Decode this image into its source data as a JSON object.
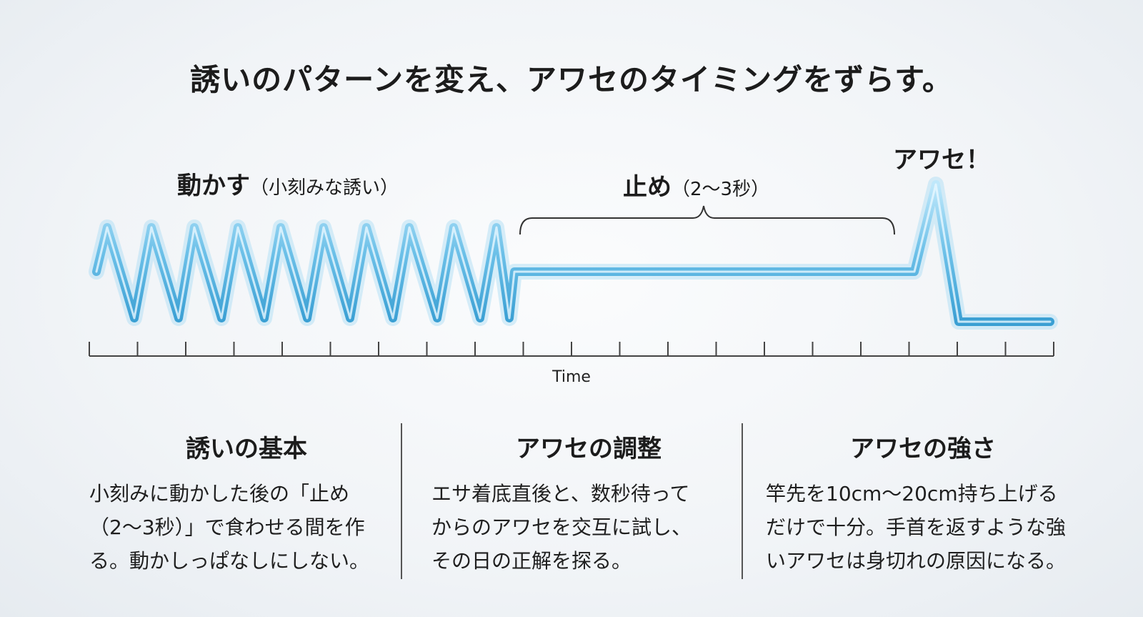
{
  "title": "誘いのパターンを変え、アワセのタイミングをずらす。",
  "labels": {
    "move_main": "動かす",
    "move_sub": "（小刻みな誘い）",
    "stop_main": "止め",
    "stop_sub": "（2〜3秒）",
    "strike": "アワセ！"
  },
  "axis": {
    "label": "Time",
    "tick_count": 21
  },
  "colors": {
    "line": "#6cc0e8",
    "line_dark": "#3a9fd3",
    "axis": "#444444"
  },
  "columns": [
    {
      "heading": "誘いの基本",
      "lines": [
        "小刻みに動かした後の「止め",
        "（2〜3秒）」で食わせる間を作",
        "る。動かしっぱなしにしない。"
      ]
    },
    {
      "heading": "アワセの調整",
      "lines": [
        "エサ着底直後と、数秒待って",
        "からのアワセを交互に試し、",
        "その日の正解を探る。"
      ]
    },
    {
      "heading": "アワセの強さ",
      "lines": [
        "竿先を10cm〜20cm持ち上げる",
        "だけで十分。手首を返すような強",
        "いアワセは身切れの原因になる。"
      ]
    }
  ]
}
